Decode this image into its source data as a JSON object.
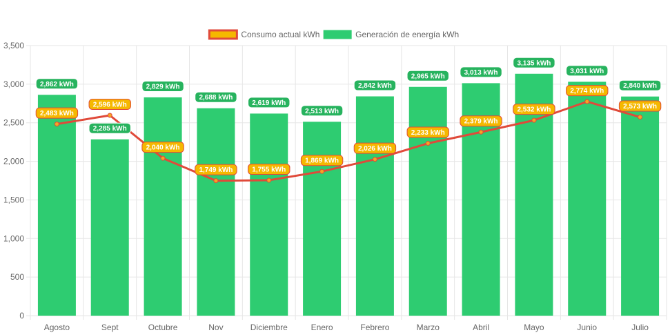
{
  "chart_data": {
    "type": "bar",
    "categories": [
      "Agosto",
      "Sept",
      "Octubre",
      "Nov",
      "Diciembre",
      "Enero",
      "Febrero",
      "Marzo",
      "Abril",
      "Mayo",
      "Junio",
      "Julio"
    ],
    "series": [
      {
        "name": "Consumo actual kWh",
        "type": "line",
        "values": [
          2483,
          2596,
          2040,
          1749,
          1755,
          1869,
          2026,
          2233,
          2379,
          2532,
          2774,
          2573
        ],
        "labels": [
          "2,483 kWh",
          "2,596 kWh",
          "2,040 kWh",
          "1,749 kWh",
          "1,755 kWh",
          "1,869 kWh",
          "2,026 kWh",
          "2,233 kWh",
          "2,379 kWh",
          "2,532 kWh",
          "2,774 kWh",
          "2,573 kWh"
        ],
        "color": "#e04a3a",
        "label_color": "#f5b800"
      },
      {
        "name": "Generación de energía kWh",
        "type": "bar",
        "values": [
          2862,
          2285,
          2829,
          2688,
          2619,
          2513,
          2842,
          2965,
          3013,
          3135,
          3031,
          2840
        ],
        "labels": [
          "2,862 kWh",
          "2,285 kWh",
          "2,829 kWh",
          "2,688 kWh",
          "2,619 kWh",
          "2,513 kWh",
          "2,842 kWh",
          "2,965 kWh",
          "3,013 kWh",
          "3,135 kWh",
          "3,031 kWh",
          "2,840 kWh"
        ],
        "color": "#2ecc71"
      }
    ],
    "ylim": [
      0,
      3500
    ],
    "yticks": [
      "0",
      "500",
      "1,000",
      "1,500",
      "2,000",
      "2,500",
      "3,000",
      "3,500"
    ],
    "ytick_values": [
      0,
      500,
      1000,
      1500,
      2000,
      2500,
      3000,
      3500
    ],
    "grid": true,
    "legend_position": "top-center"
  }
}
